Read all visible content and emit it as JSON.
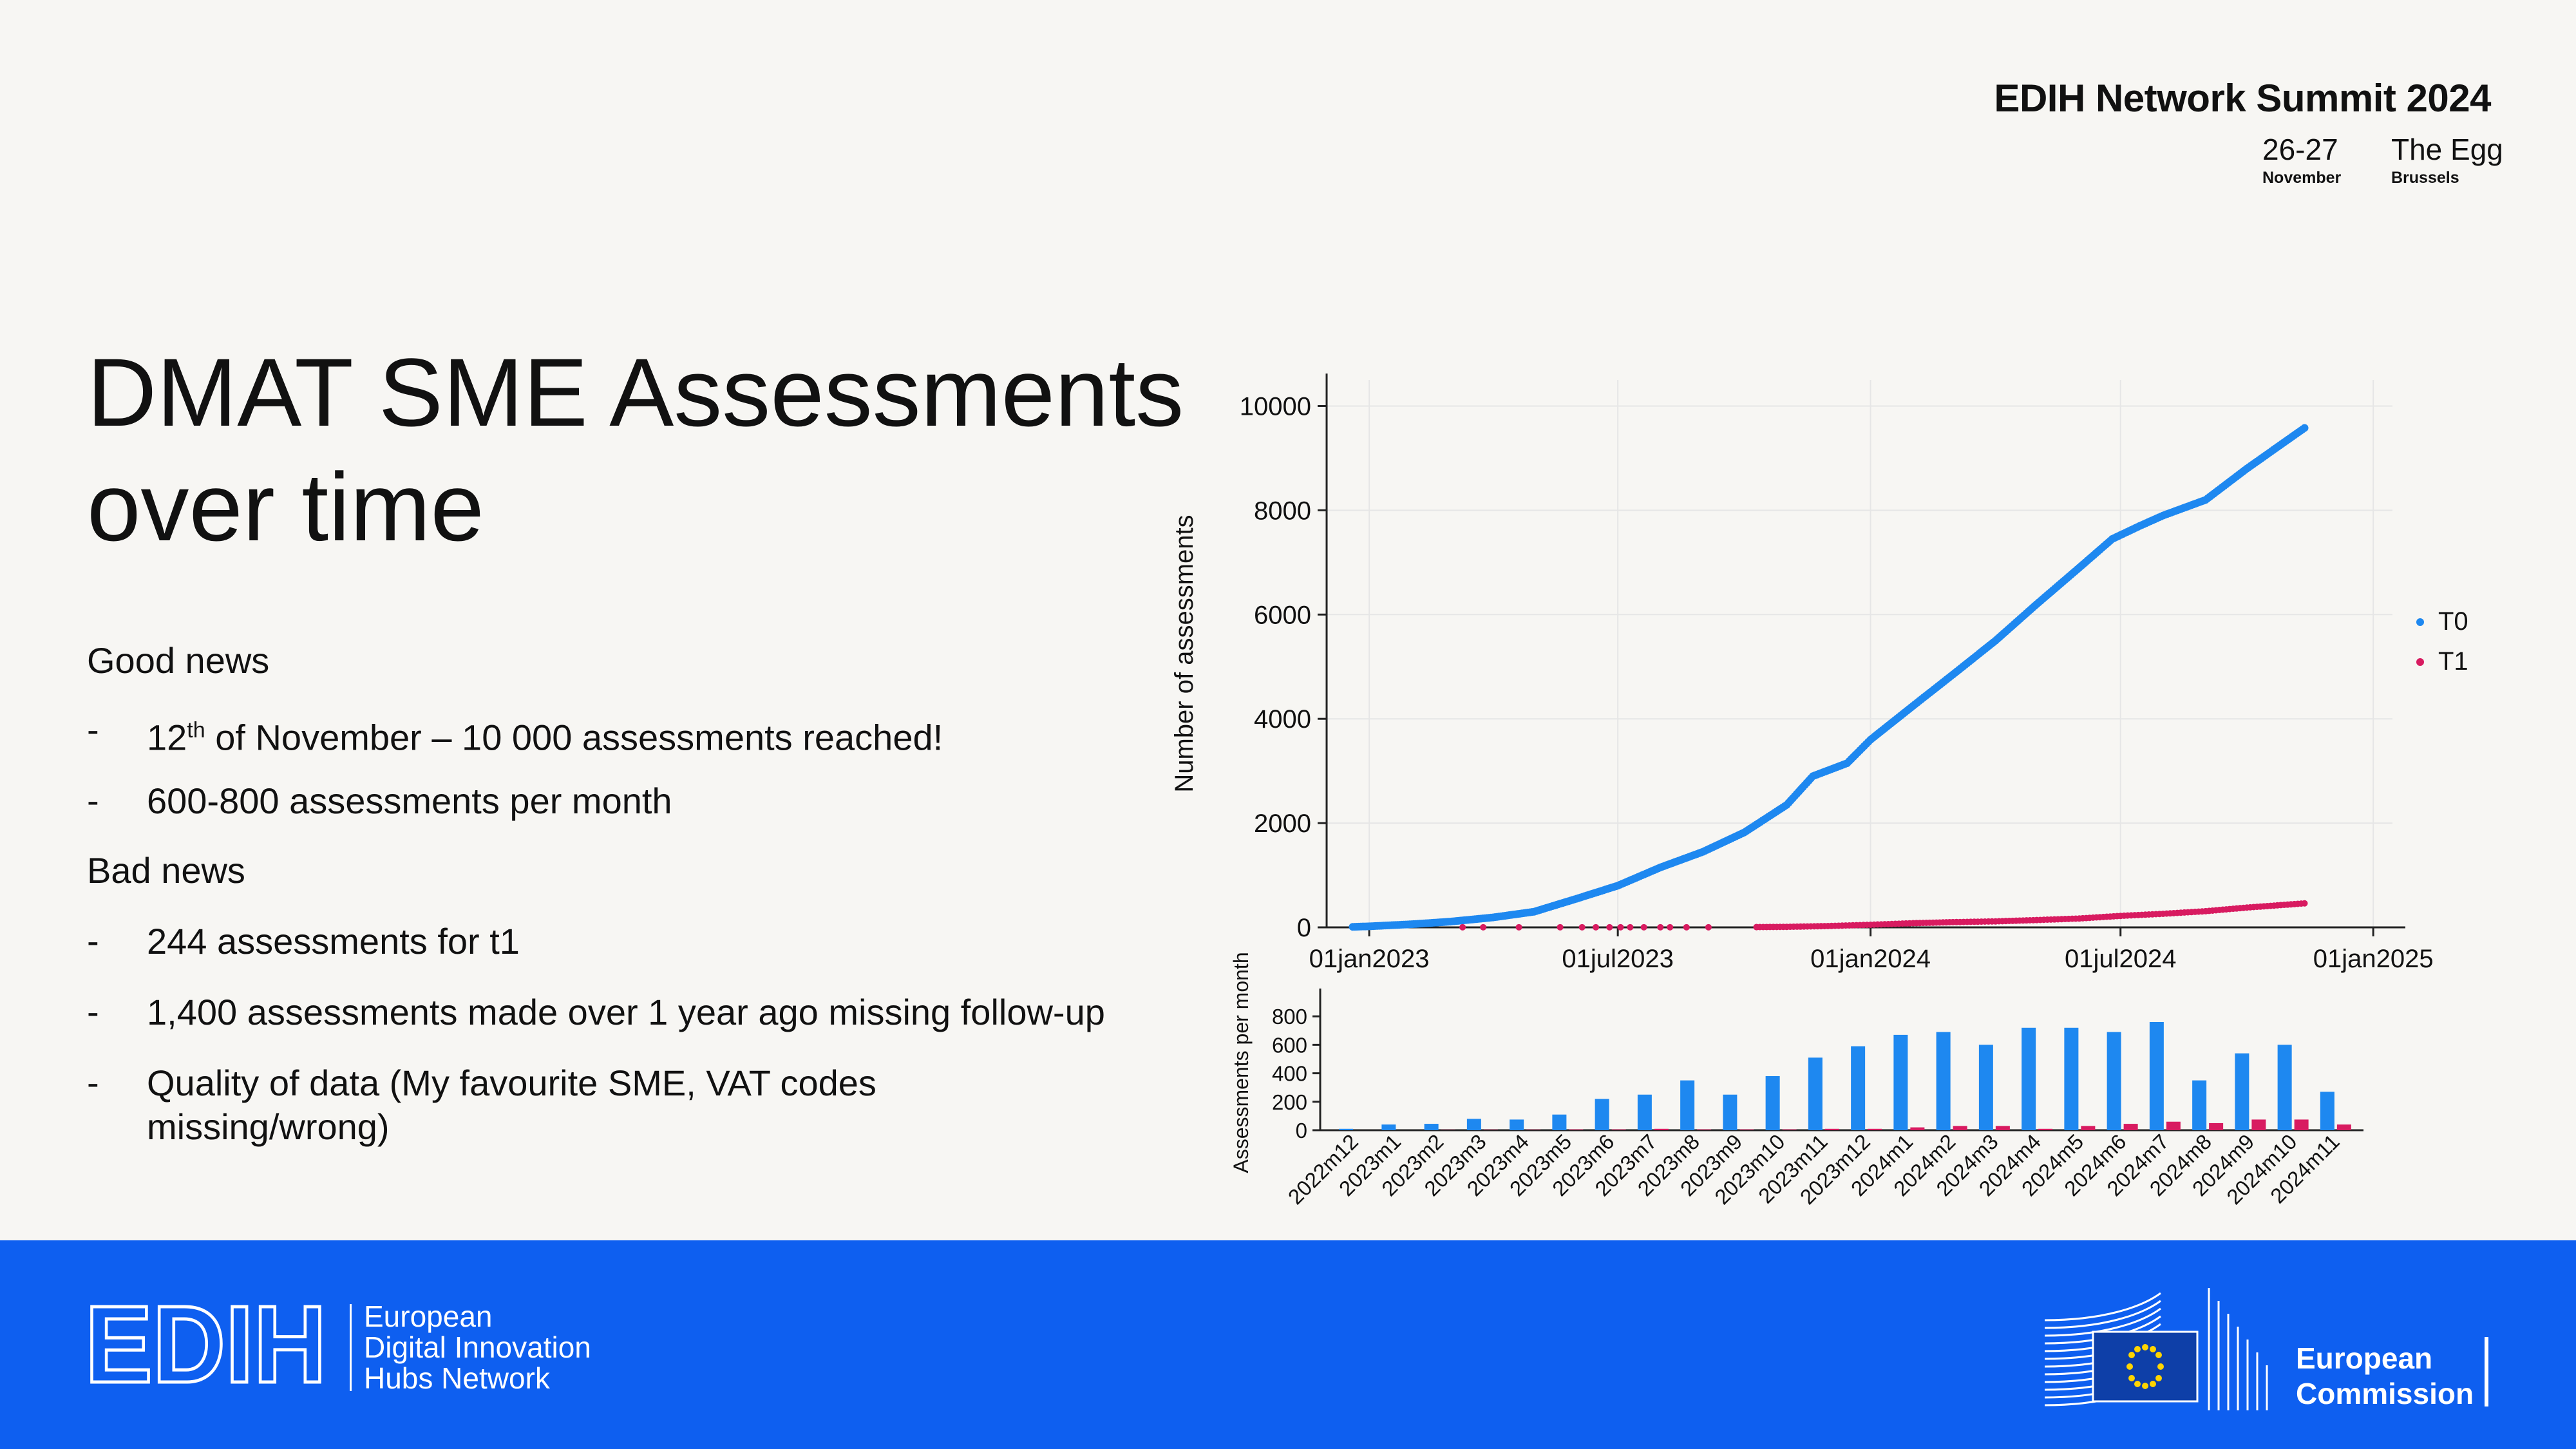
{
  "header": {
    "summit_title": "EDIH Network Summit 2024",
    "dates": "26-27",
    "month": "November",
    "venue": "The Egg",
    "city": "Brussels"
  },
  "slide": {
    "title_line1": "DMAT SME Assessments",
    "title_line2": "over time",
    "good_news": "Good news",
    "g1_pre": "12",
    "g1_sup": "th",
    "g1_post": " of November – 10 000 assessments reached!",
    "g2": "600-800 assessments per month",
    "bad_news": "Bad news",
    "b1": "244 assessments for t1",
    "b2": "1,400 assessments made over 1 year ago missing follow-up",
    "b3_line1": "Quality of data (My favourite SME, VAT codes",
    "b3_line2": "missing/wrong)",
    "dash": "-"
  },
  "footer": {
    "edih_word": "EDIH",
    "edih_line1": "European",
    "edih_line2": "Digital Innovation",
    "edih_line3": "Hubs Network",
    "ec_line1": "European",
    "ec_line2": "Commission"
  },
  "colors": {
    "t0": "#1e88f0",
    "t1": "#d81b60",
    "footer_bg": "#0e5ff0"
  },
  "chart_data": [
    {
      "type": "scatter",
      "title": "",
      "xlabel": "",
      "ylabel": "Number of assessments",
      "x_type": "date",
      "xlim": [
        "2022-12-01",
        "2025-01-15"
      ],
      "ylim": [
        0,
        10500
      ],
      "x_ticks": [
        "2023-01-01",
        "2023-07-01",
        "2024-01-01",
        "2024-07-01",
        "2025-01-01"
      ],
      "x_tick_labels": [
        "01jan2023",
        "01jul2023",
        "01jan2024",
        "01jul2024",
        "01jan2025"
      ],
      "y_ticks": [
        0,
        2000,
        4000,
        6000,
        8000,
        10000
      ],
      "y_tick_labels": [
        "0",
        "2000",
        "4000",
        "6000",
        "8000",
        "10000"
      ],
      "grid": true,
      "legend_position": "right",
      "series": [
        {
          "name": "T0",
          "points": [
            [
              "2022-12-20",
              10
            ],
            [
              "2023-01-01",
              20
            ],
            [
              "2023-02-01",
              60
            ],
            [
              "2023-03-01",
              110
            ],
            [
              "2023-04-01",
              190
            ],
            [
              "2023-05-01",
              300
            ],
            [
              "2023-06-01",
              550
            ],
            [
              "2023-07-01",
              800
            ],
            [
              "2023-08-01",
              1150
            ],
            [
              "2023-09-01",
              1450
            ],
            [
              "2023-10-01",
              1820
            ],
            [
              "2023-11-01",
              2350
            ],
            [
              "2023-11-20",
              2900
            ],
            [
              "2023-12-15",
              3150
            ],
            [
              "2024-01-01",
              3600
            ],
            [
              "2024-02-01",
              4250
            ],
            [
              "2024-03-01",
              4850
            ],
            [
              "2024-04-01",
              5500
            ],
            [
              "2024-05-01",
              6200
            ],
            [
              "2024-06-01",
              6900
            ],
            [
              "2024-06-25",
              7450
            ],
            [
              "2024-07-15",
              7700
            ],
            [
              "2024-08-01",
              7900
            ],
            [
              "2024-09-01",
              8200
            ],
            [
              "2024-10-01",
              8800
            ],
            [
              "2024-11-12",
              9580
            ]
          ]
        },
        {
          "name": "T1",
          "points": [
            [
              "2023-03-10",
              2
            ],
            [
              "2023-03-25",
              2
            ],
            [
              "2023-04-20",
              2
            ],
            [
              "2023-05-20",
              2
            ],
            [
              "2023-06-05",
              2
            ],
            [
              "2023-06-15",
              2
            ],
            [
              "2023-06-25",
              2
            ],
            [
              "2023-07-03",
              2
            ],
            [
              "2023-07-10",
              2
            ],
            [
              "2023-07-20",
              2
            ],
            [
              "2023-08-01",
              2
            ],
            [
              "2023-08-08",
              2
            ],
            [
              "2023-08-20",
              2
            ],
            [
              "2023-09-05",
              2
            ],
            [
              "2023-10-10",
              5
            ],
            [
              "2023-11-01",
              10
            ],
            [
              "2023-12-01",
              25
            ],
            [
              "2024-01-01",
              50
            ],
            [
              "2024-02-01",
              80
            ],
            [
              "2024-03-01",
              100
            ],
            [
              "2024-04-01",
              115
            ],
            [
              "2024-05-01",
              140
            ],
            [
              "2024-06-01",
              170
            ],
            [
              "2024-07-01",
              220
            ],
            [
              "2024-08-01",
              260
            ],
            [
              "2024-09-01",
              310
            ],
            [
              "2024-10-01",
              380
            ],
            [
              "2024-11-12",
              460
            ]
          ]
        }
      ]
    },
    {
      "type": "bar",
      "title": "",
      "xlabel": "",
      "ylabel": "Assessments per month",
      "ylim": [
        0,
        950
      ],
      "y_ticks": [
        0,
        200,
        400,
        600,
        800
      ],
      "y_tick_labels": [
        "0",
        "200",
        "400",
        "600",
        "800"
      ],
      "categories": [
        "2022m12",
        "2023m1",
        "2023m2",
        "2023m3",
        "2023m4",
        "2023m5",
        "2023m6",
        "2023m7",
        "2023m8",
        "2023m9",
        "2023m10",
        "2023m11",
        "2023m12",
        "2024m1",
        "2024m2",
        "2024m3",
        "2024m4",
        "2024m5",
        "2024m6",
        "2024m7",
        "2024m8",
        "2024m9",
        "2024m10",
        "2024m11"
      ],
      "series": [
        {
          "name": "T0",
          "values": [
            10,
            40,
            45,
            80,
            75,
            110,
            220,
            250,
            350,
            250,
            380,
            510,
            590,
            670,
            690,
            600,
            720,
            720,
            690,
            760,
            350,
            540,
            600,
            270
          ]
        },
        {
          "name": "T1",
          "values": [
            0,
            0,
            2,
            3,
            3,
            5,
            5,
            10,
            5,
            5,
            5,
            10,
            10,
            20,
            30,
            30,
            10,
            30,
            45,
            60,
            50,
            75,
            75,
            40
          ]
        }
      ]
    }
  ]
}
